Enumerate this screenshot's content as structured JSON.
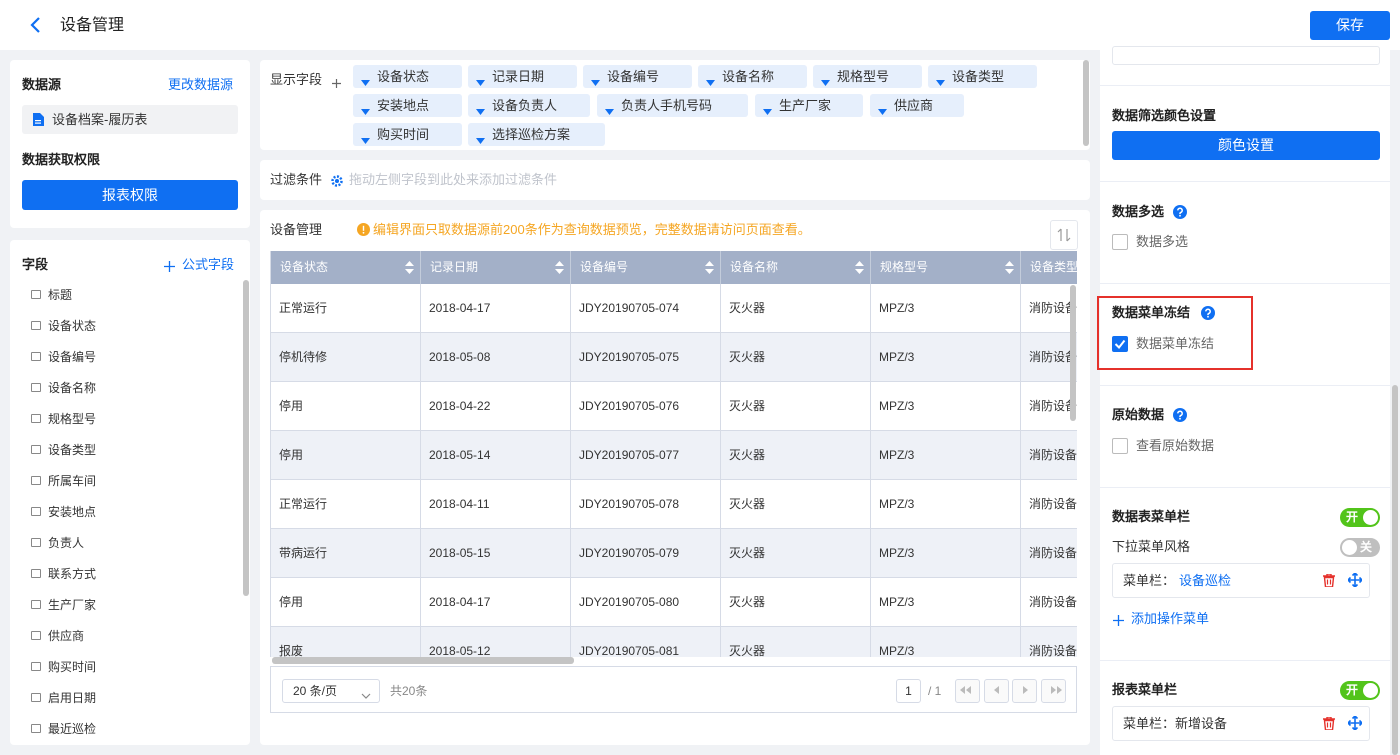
{
  "header": {
    "title": "设备管理",
    "save": "保存"
  },
  "datasource": {
    "label": "数据源",
    "change": "更改数据源",
    "name": "设备档案-履历表",
    "permission_label": "数据获取权限",
    "permission_button": "报表权限"
  },
  "fields": {
    "title": "字段",
    "add": "公式字段",
    "items": [
      "标题",
      "设备状态",
      "设备编号",
      "设备名称",
      "规格型号",
      "设备类型",
      "所属车间",
      "安装地点",
      "负责人",
      "联系方式",
      "生产厂家",
      "供应商",
      "购买时间",
      "启用日期",
      "最近巡检"
    ]
  },
  "display_fields": {
    "label": "显示字段",
    "chips": [
      [
        "设备状态",
        "记录日期",
        "设备编号",
        "设备名称",
        "规格型号",
        "设备类型"
      ],
      [
        "安装地点",
        "设备负责人",
        "负责人手机号码",
        "生产厂家",
        "供应商"
      ],
      [
        "购买时间",
        "选择巡检方案"
      ]
    ]
  },
  "filter": {
    "label": "过滤条件",
    "hint": "拖动左侧字段到此处来添加过滤条件"
  },
  "table": {
    "title": "设备管理",
    "notice": "编辑界面只取数据源前200条作为查询数据预览，完整数据请访问页面查看。",
    "columns": [
      "设备状态",
      "记录日期",
      "设备编号",
      "设备名称",
      "规格型号",
      "设备类型"
    ],
    "rows": [
      [
        "正常运行",
        "2018-04-17",
        "JDY20190705-074",
        "灭火器",
        "MPZ/3",
        "消防设备"
      ],
      [
        "停机待修",
        "2018-05-08",
        "JDY20190705-075",
        "灭火器",
        "MPZ/3",
        "消防设备"
      ],
      [
        "停用",
        "2018-04-22",
        "JDY20190705-076",
        "灭火器",
        "MPZ/3",
        "消防设备"
      ],
      [
        "停用",
        "2018-05-14",
        "JDY20190705-077",
        "灭火器",
        "MPZ/3",
        "消防设备"
      ],
      [
        "正常运行",
        "2018-04-11",
        "JDY20190705-078",
        "灭火器",
        "MPZ/3",
        "消防设备"
      ],
      [
        "带病运行",
        "2018-05-15",
        "JDY20190705-079",
        "灭火器",
        "MPZ/3",
        "消防设备"
      ],
      [
        "停用",
        "2018-04-17",
        "JDY20190705-080",
        "灭火器",
        "MPZ/3",
        "消防设备"
      ],
      [
        "报废",
        "2018-05-12",
        "JDY20190705-081",
        "灭火器",
        "MPZ/3",
        "消防设备"
      ]
    ]
  },
  "pagination": {
    "page_size": "20 条/页",
    "total": "共20条",
    "page": "1",
    "pages": "/ 1"
  },
  "settings": {
    "color_title": "数据筛选颜色设置",
    "color_button": "颜色设置",
    "multi_title": "数据多选",
    "multi_option": "数据多选",
    "multi_checked": false,
    "freeze_title": "数据菜单冻结",
    "freeze_option": "数据菜单冻结",
    "freeze_checked": true,
    "raw_title": "原始数据",
    "raw_option": "查看原始数据",
    "raw_checked": false,
    "table_menu_title": "数据表菜单栏",
    "table_menu_toggle": "开",
    "dropdown_style": "下拉菜单风格",
    "dropdown_toggle": "关",
    "menu_label": "菜单栏：",
    "menu_value": "设备巡检",
    "add_menu": "添加操作菜单",
    "report_menu_title": "报表菜单栏",
    "report_menu_toggle": "开",
    "report_menu_item": "菜单栏：新增设备"
  }
}
